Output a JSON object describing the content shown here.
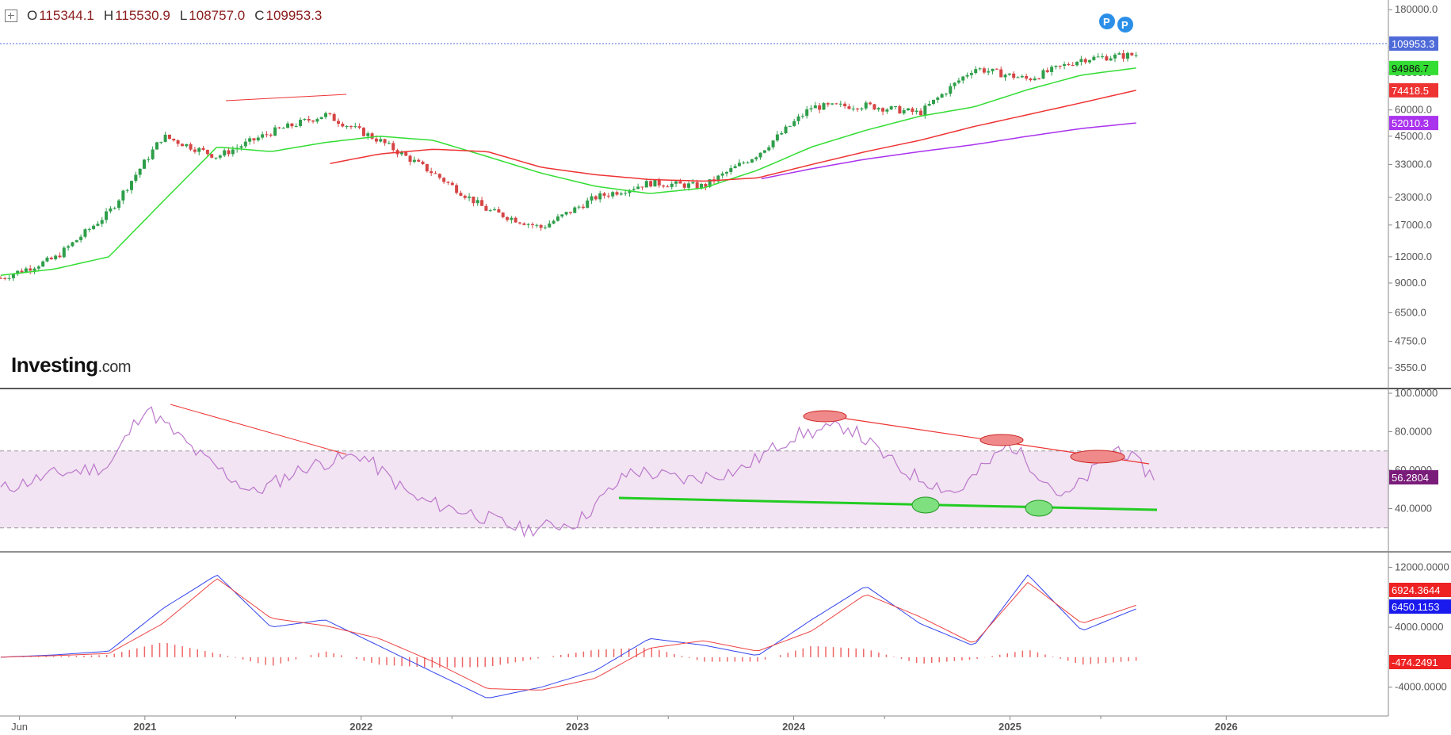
{
  "ohlc": {
    "open_label": "O",
    "open": "115344.1",
    "high_label": "H",
    "high": "115530.9",
    "low_label": "L",
    "low": "108757.0",
    "close_label": "C",
    "close": "109953.3"
  },
  "logo": {
    "main": "Investing",
    "suffix": ".com"
  },
  "colors": {
    "up": "#2e9e4a",
    "down": "#d64545",
    "sma_green": "#33dd33",
    "sma_red": "#ee3333",
    "sma_purple": "#aa33ee",
    "rsi": "#bb77cc",
    "rsi_band": "#f2e4f2",
    "macd": "#3344ee",
    "signal": "#ee4444",
    "hist": "#ee6666",
    "last_price": "#4f6bd8"
  },
  "chart_data": [
    {
      "type": "candlestick",
      "title": "",
      "y_scale": "log",
      "ylim": [
        3200,
        190000
      ],
      "ticks": [
        "180000.0",
        "120000.0",
        "90000.0",
        "60000.0",
        "45000.0",
        "33000.0",
        "23000.0",
        "17000.0",
        "12000.0",
        "9000.0",
        "6500.0",
        "4750.0",
        "3550.0"
      ],
      "x": [
        "2020-05",
        "2020-08",
        "2020-11",
        "2021-02",
        "2021-05",
        "2021-08",
        "2021-11",
        "2022-02",
        "2022-05",
        "2022-08",
        "2022-11",
        "2023-02",
        "2023-05",
        "2023-08",
        "2023-11",
        "2024-02",
        "2024-05",
        "2024-08",
        "2024-11",
        "2025-02",
        "2025-05",
        "2025-08"
      ],
      "close": [
        9500,
        11800,
        19500,
        45000,
        36000,
        47000,
        57000,
        43000,
        30000,
        20000,
        16500,
        23000,
        27000,
        26000,
        37000,
        62000,
        63000,
        58000,
        95000,
        84000,
        105000,
        109953.3
      ],
      "series": [
        {
          "name": "",
          "values": [
            9800,
            10500,
            12000,
            22000,
            40000,
            38000,
            42000,
            45000,
            43000,
            36000,
            30000,
            26000,
            24000,
            25500,
            31000,
            40000,
            48000,
            56000,
            62000,
            75000,
            88000,
            94986.7
          ],
          "label": "94986.7"
        },
        {
          "name": "",
          "values": [
            null,
            null,
            null,
            null,
            null,
            null,
            33000,
            37000,
            39000,
            38000,
            32000,
            29500,
            28000,
            27500,
            28500,
            33000,
            38000,
            43000,
            50000,
            57000,
            65000,
            74418.5
          ],
          "label": "74418.5"
        },
        {
          "name": "",
          "values": [
            null,
            null,
            null,
            null,
            null,
            null,
            null,
            null,
            null,
            null,
            null,
            null,
            null,
            null,
            28000,
            31500,
            35000,
            38000,
            41000,
            45000,
            49000,
            52010.3
          ],
          "label": "52010.3"
        }
      ],
      "last_price_label": "109953.3",
      "annotations": [
        "P",
        "P"
      ]
    },
    {
      "type": "line",
      "title": "",
      "ylim": [
        20,
        100
      ],
      "ticks": [
        "100.0000",
        "80.0000",
        "60.0000",
        "40.0000"
      ],
      "band": [
        70,
        30
      ],
      "x": [
        "2020-05",
        "2020-08",
        "2020-11",
        "2021-01",
        "2021-04",
        "2021-07",
        "2021-10",
        "2022-01",
        "2022-04",
        "2022-07",
        "2022-10",
        "2023-01",
        "2023-04",
        "2023-07",
        "2023-10",
        "2024-01",
        "2024-04",
        "2024-07",
        "2024-10",
        "2025-01",
        "2025-04",
        "2025-07",
        "2025-09"
      ],
      "values": [
        50,
        58,
        62,
        93,
        68,
        48,
        62,
        68,
        45,
        38,
        29,
        33,
        60,
        55,
        60,
        78,
        83,
        60,
        48,
        74,
        45,
        72,
        56.28
      ],
      "last_label": "56.2804"
    },
    {
      "type": "line",
      "title": "",
      "ylim": [
        -7000,
        13000
      ],
      "ticks": [
        "12000.0000",
        "4000.0000",
        "-4000.0000"
      ],
      "x": [
        "2020-05",
        "2020-08",
        "2020-11",
        "2021-02",
        "2021-05",
        "2021-08",
        "2021-11",
        "2022-02",
        "2022-05",
        "2022-08",
        "2022-11",
        "2023-02",
        "2023-05",
        "2023-08",
        "2023-11",
        "2024-02",
        "2024-05",
        "2024-08",
        "2024-11",
        "2025-02",
        "2025-05",
        "2025-08"
      ],
      "series": [
        {
          "name": "",
          "values": [
            0,
            300,
            800,
            6500,
            11000,
            4000,
            5000,
            1500,
            -2000,
            -5500,
            -4000,
            -1800,
            2500,
            1600,
            200,
            5000,
            9500,
            4500,
            1500,
            11000,
            3500,
            6450.1153
          ],
          "label": "6450.1153"
        },
        {
          "name": "",
          "values": [
            0,
            200,
            500,
            4500,
            10500,
            5200,
            4200,
            2500,
            -600,
            -4200,
            -4400,
            -2800,
            1200,
            2200,
            800,
            3500,
            8400,
            5400,
            1800,
            10000,
            4500,
            6924.3644
          ],
          "label": "6924.3644"
        }
      ],
      "histogram": [
        0,
        100,
        300,
        2000,
        500,
        -1200,
        800,
        -1000,
        -1400,
        -1300,
        -100,
        1000,
        1300,
        -600,
        -600,
        1500,
        1100,
        -900,
        -300,
        1000,
        -1000,
        -474.2491
      ],
      "hist_label": "-474.2491"
    }
  ],
  "xaxis": {
    "labels": [
      "Jun",
      "2021",
      "2022",
      "2023",
      "2024",
      "2025",
      "2026"
    ]
  }
}
